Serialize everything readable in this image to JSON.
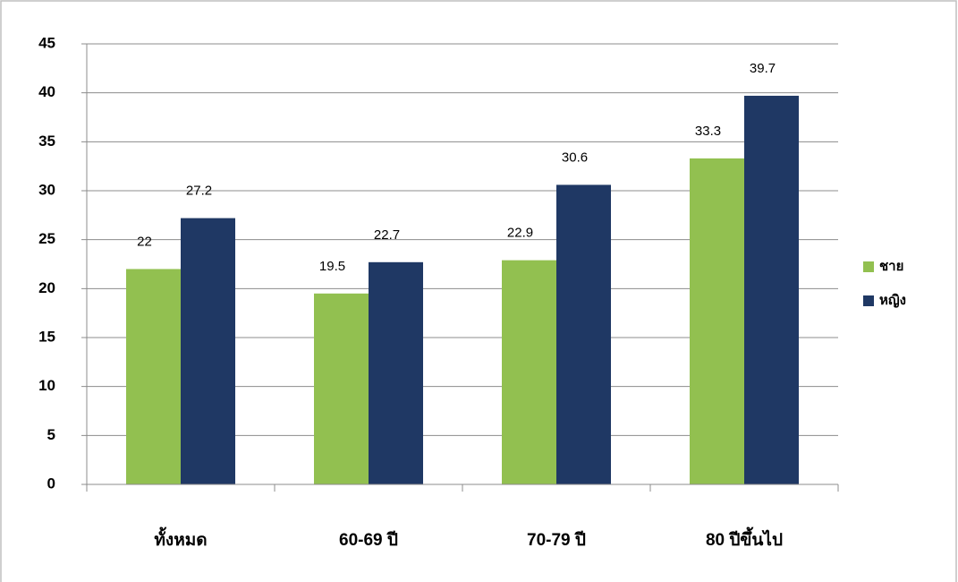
{
  "chart_data": {
    "type": "bar",
    "categories": [
      "ทั้งหมด",
      "60-69 ปี",
      "70-79 ปี",
      "80 ปีขึ้นไป"
    ],
    "series": [
      {
        "name": "ชาย",
        "color": "#92c050",
        "values": [
          22,
          19.5,
          22.9,
          33.3
        ]
      },
      {
        "name": "หญิง",
        "color": "#1f3864",
        "values": [
          27.2,
          22.7,
          30.6,
          39.7
        ]
      }
    ],
    "ylim": [
      0,
      45
    ],
    "yticks": [
      0,
      5,
      10,
      15,
      20,
      25,
      30,
      35,
      40,
      45
    ],
    "grid": true,
    "legend": "right"
  }
}
